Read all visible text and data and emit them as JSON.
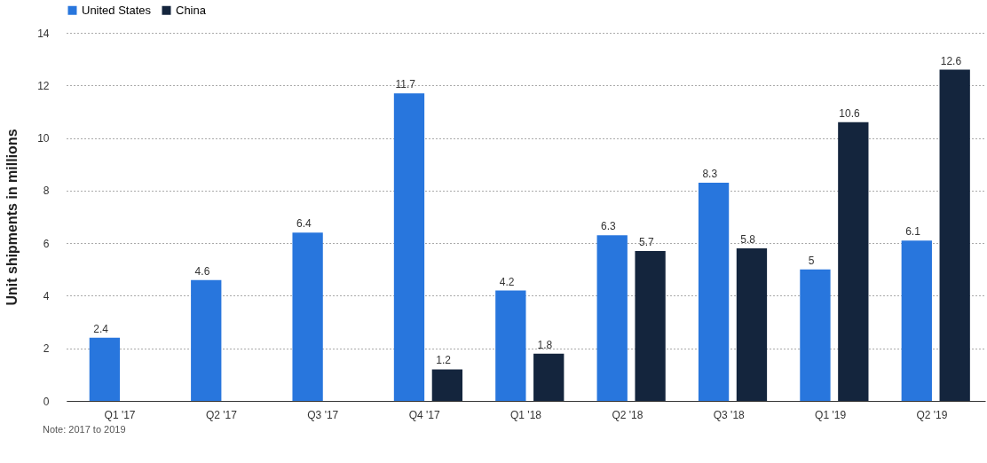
{
  "chart_data": {
    "type": "bar",
    "ylabel": "Unit shipments in millions",
    "categories": [
      "Q1 '17",
      "Q2 '17",
      "Q3 '17",
      "Q4 '17",
      "Q1 '18",
      "Q2 '18",
      "Q3 '18",
      "Q1 '19",
      "Q2 '19"
    ],
    "series": [
      {
        "name": "United States",
        "color": "#2876dd",
        "values": [
          2.4,
          4.6,
          6.4,
          11.7,
          4.2,
          6.3,
          8.3,
          5,
          6.1
        ]
      },
      {
        "name": "China",
        "color": "#14253d",
        "values": [
          null,
          null,
          null,
          1.2,
          1.8,
          5.7,
          5.8,
          10.6,
          12.6
        ]
      }
    ],
    "ylim": [
      0,
      14
    ],
    "yticks": [
      0,
      2,
      4,
      6,
      8,
      10,
      12,
      14
    ],
    "grid": "y",
    "legend": "top",
    "data_labels": true,
    "annotations": [
      "Note: 2017 to 2019"
    ]
  }
}
